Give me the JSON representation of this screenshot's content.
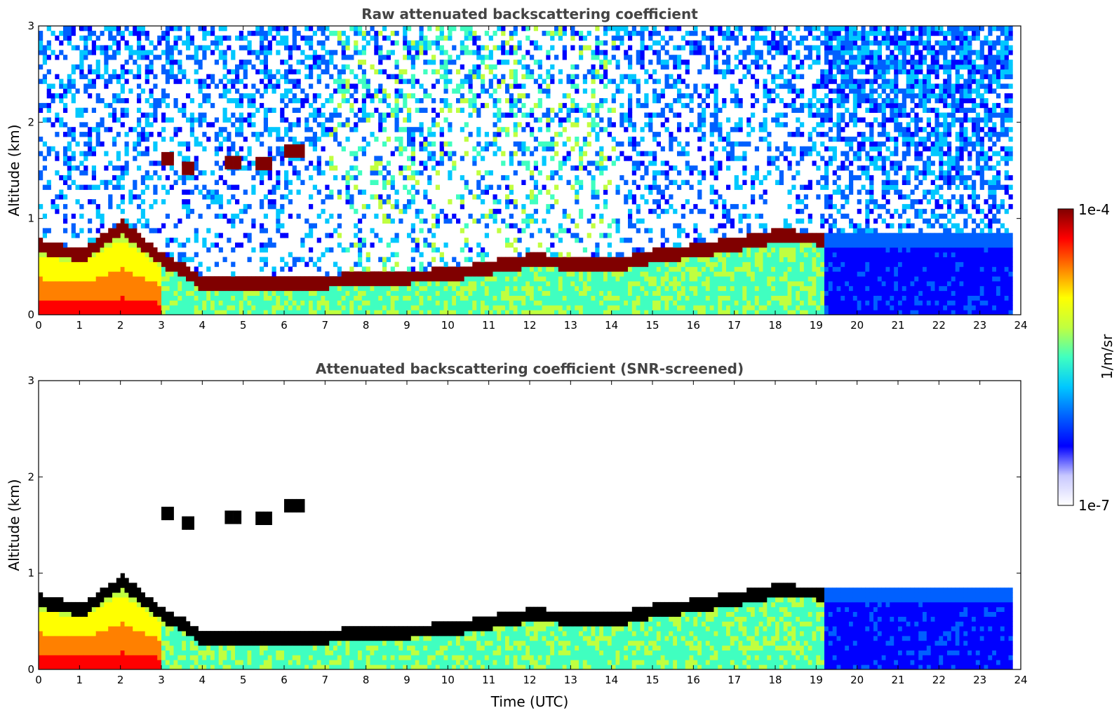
{
  "colors": {
    "colormap": [
      "#ffffff",
      "#c8c8ff",
      "#0000ff",
      "#0060ff",
      "#00c8ff",
      "#40ffc0",
      "#c0ff40",
      "#ffff00",
      "#ff8000",
      "#ff0000",
      "#800000"
    ],
    "screened_core": "#000000"
  },
  "colorbar": {
    "max_label": "1e-4",
    "min_label": "1e-7",
    "label": "1/m/sr",
    "scale": "log"
  },
  "chart_data": [
    {
      "type": "heatmap",
      "title": "Raw attenuated backscattering coefficient",
      "xlabel": "",
      "ylabel": "Altitude (km)",
      "xlim": [
        0,
        24
      ],
      "ylim": [
        0,
        3
      ],
      "xticks": [
        0,
        1,
        2,
        3,
        4,
        5,
        6,
        7,
        8,
        9,
        10,
        11,
        12,
        13,
        14,
        15,
        16,
        17,
        18,
        19,
        20,
        21,
        22,
        23,
        24
      ],
      "yticks": [
        0,
        1,
        2,
        3
      ],
      "data_end_time": 23.8,
      "boundary_layer_top_km": {
        "time": [
          0,
          1,
          2,
          3,
          3.5,
          4,
          5,
          6,
          7,
          8,
          9,
          10,
          11,
          12,
          13,
          14,
          15,
          16,
          17,
          18,
          19,
          19.2
        ],
        "altitude": [
          0.7,
          0.6,
          0.9,
          0.55,
          0.45,
          0.3,
          0.3,
          0.3,
          0.33,
          0.36,
          0.38,
          0.4,
          0.48,
          0.55,
          0.52,
          0.5,
          0.6,
          0.65,
          0.72,
          0.8,
          0.78,
          0.75
        ]
      },
      "elevated_layers": [
        {
          "time": [
            3.0,
            3.3
          ],
          "altitude_km": 1.62
        },
        {
          "time": [
            3.5,
            3.8
          ],
          "altitude_km": 1.52
        },
        {
          "time": [
            4.55,
            4.85
          ],
          "altitude_km": 1.58
        },
        {
          "time": [
            5.3,
            5.6
          ],
          "altitude_km": 1.57
        },
        {
          "time": [
            6.0,
            6.4
          ],
          "altitude_km": 1.7
        }
      ]
    },
    {
      "type": "heatmap",
      "title": "Attenuated backscattering coefficient (SNR-screened)",
      "xlabel": "Time (UTC)",
      "ylabel": "Altitude (km)",
      "xlim": [
        0,
        24
      ],
      "ylim": [
        0,
        3
      ],
      "xticks": [
        0,
        1,
        2,
        3,
        4,
        5,
        6,
        7,
        8,
        9,
        10,
        11,
        12,
        13,
        14,
        15,
        16,
        17,
        18,
        19,
        20,
        21,
        22,
        23,
        24
      ],
      "yticks": [
        0,
        1,
        2,
        3
      ],
      "data_end_time": 23.8
    }
  ]
}
